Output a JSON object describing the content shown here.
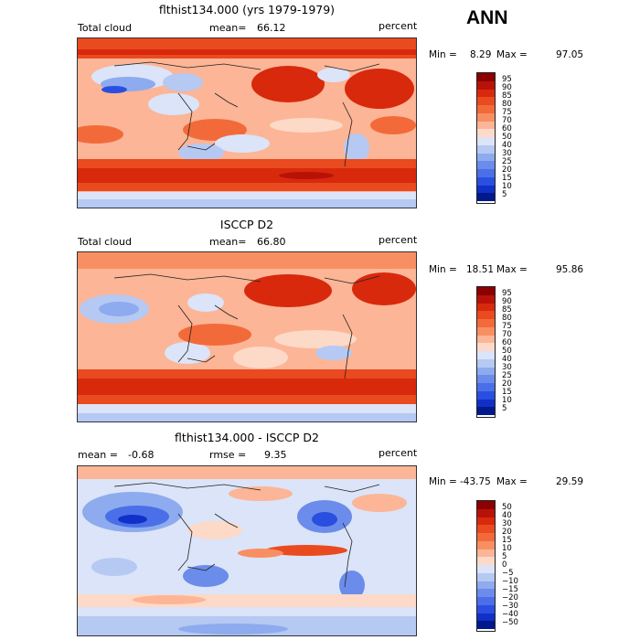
{
  "season_label": "ANN",
  "panels": [
    {
      "title": "flthist134.000 (yrs 1979-1979)",
      "left_label": "Total cloud",
      "center_label": "mean=",
      "center_value": "66.12",
      "units": "percent",
      "min_label": "Min =",
      "min_value": "8.29",
      "max_label": "Max =",
      "max_value": "97.05"
    },
    {
      "title": "ISCCP D2",
      "left_label": "Total cloud",
      "center_label": "mean=",
      "center_value": "66.80",
      "units": "percent",
      "min_label": "Min =",
      "min_value": "18.51",
      "max_label": "Max =",
      "max_value": "95.86"
    },
    {
      "title": "flthist134.000 - ISCCP D2",
      "left_label": "mean =",
      "left_value": "-0.68",
      "center_label": "rmse =",
      "center_value": "9.35",
      "units": "percent",
      "min_label": "Min =",
      "min_value": "-43.75",
      "max_label": "Max =",
      "max_value": "29.59"
    }
  ],
  "colorbar_abs": {
    "levels": [
      "95",
      "90",
      "85",
      "80",
      "75",
      "70",
      "60",
      "50",
      "40",
      "30",
      "25",
      "20",
      "15",
      "10",
      "5"
    ],
    "colors": [
      "#8b0000",
      "#b81208",
      "#d8290d",
      "#ea4a1f",
      "#f36a3a",
      "#f88f62",
      "#fcb596",
      "#fdd9c8",
      "#dbe4f8",
      "#b5c9f3",
      "#8dabee",
      "#6b8ceb",
      "#4a6fe8",
      "#2a4fe0",
      "#1030c8",
      "#001a8c"
    ]
  },
  "colorbar_diff": {
    "levels": [
      "50",
      "40",
      "30",
      "20",
      "15",
      "10",
      "5",
      "0",
      "−5",
      "−10",
      "−15",
      "−20",
      "−30",
      "−40",
      "−50"
    ],
    "colors": [
      "#8b0000",
      "#b81208",
      "#d8290d",
      "#ea4a1f",
      "#f36a3a",
      "#f88f62",
      "#fcb596",
      "#fdd9c8",
      "#dbe4f8",
      "#b5c9f3",
      "#8dabee",
      "#6b8ceb",
      "#4a6fe8",
      "#2a4fe0",
      "#1030c8",
      "#001a8c"
    ]
  }
}
